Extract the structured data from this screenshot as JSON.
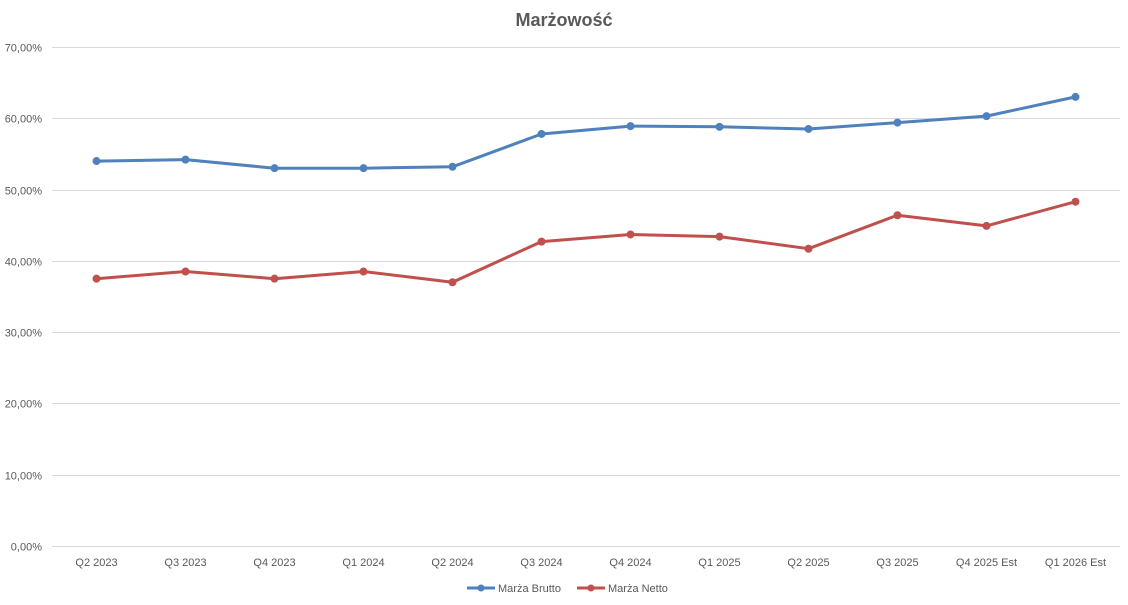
{
  "chart_data": {
    "type": "line",
    "title": "Marżowość",
    "xlabel": "",
    "ylabel": "",
    "ylim": [
      0,
      70
    ],
    "y_ticks": [
      0,
      10,
      20,
      30,
      40,
      50,
      60,
      70
    ],
    "y_tick_labels": [
      "0,00%",
      "10,00%",
      "20,00%",
      "30,00%",
      "40,00%",
      "50,00%",
      "60,00%",
      "70,00%"
    ],
    "grid": true,
    "legend_position": "bottom",
    "categories": [
      "Q2 2023",
      "Q3 2023",
      "Q4 2023",
      "Q1 2024",
      "Q2 2024",
      "Q3 2024",
      "Q4 2024",
      "Q1 2025",
      "Q2 2025",
      "Q3 2025",
      "Q4 2025 Est",
      "Q1 2026 Est"
    ],
    "series": [
      {
        "name": "Marża Brutto",
        "color": "#4f81bd",
        "values": [
          54.0,
          54.2,
          53.0,
          53.0,
          53.2,
          57.8,
          58.9,
          58.8,
          58.5,
          59.4,
          60.3,
          63.0
        ]
      },
      {
        "name": "Marża Netto",
        "color": "#c0504d",
        "values": [
          37.5,
          38.5,
          37.5,
          38.5,
          37.0,
          42.7,
          43.7,
          43.4,
          41.7,
          46.4,
          44.9,
          48.3
        ]
      }
    ]
  }
}
